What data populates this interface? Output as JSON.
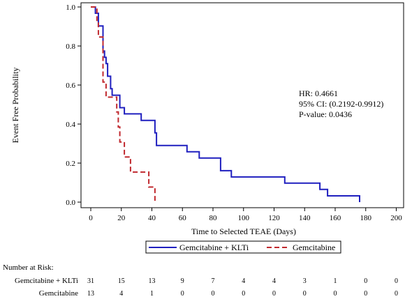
{
  "chart_data": {
    "type": "line",
    "subtype": "kaplan-meier step",
    "xlabel": "Time to Selected TEAE (Days)",
    "ylabel": "Event Free Probability",
    "xlim": [
      0,
      200
    ],
    "ylim": [
      0,
      1.0
    ],
    "x_ticks": [
      "0",
      "20",
      "40",
      "60",
      "80",
      "100",
      "120",
      "140",
      "160",
      "180",
      "200"
    ],
    "y_ticks": [
      "0.0",
      "0.2",
      "0.4",
      "0.6",
      "0.8",
      "1.0"
    ],
    "grid": false,
    "legend_position": "bottom",
    "series": [
      {
        "name": "Gemcitabine + KLTi",
        "color": "#1f1fbf",
        "line_style": "solid",
        "points": [
          [
            0,
            1.0
          ],
          [
            3,
            1.0
          ],
          [
            3,
            0.968
          ],
          [
            5,
            0.968
          ],
          [
            5,
            0.903
          ],
          [
            8,
            0.903
          ],
          [
            8,
            0.774
          ],
          [
            9,
            0.774
          ],
          [
            9,
            0.742
          ],
          [
            10,
            0.742
          ],
          [
            10,
            0.71
          ],
          [
            11,
            0.71
          ],
          [
            11,
            0.645
          ],
          [
            13,
            0.645
          ],
          [
            13,
            0.581
          ],
          [
            14,
            0.581
          ],
          [
            14,
            0.548
          ],
          [
            19,
            0.548
          ],
          [
            19,
            0.484
          ],
          [
            22,
            0.484
          ],
          [
            22,
            0.452
          ],
          [
            33,
            0.452
          ],
          [
            33,
            0.419
          ],
          [
            42,
            0.419
          ],
          [
            42,
            0.355
          ],
          [
            43,
            0.355
          ],
          [
            43,
            0.29
          ],
          [
            63,
            0.29
          ],
          [
            63,
            0.258
          ],
          [
            71,
            0.258
          ],
          [
            71,
            0.226
          ],
          [
            85,
            0.226
          ],
          [
            85,
            0.161
          ],
          [
            92,
            0.161
          ],
          [
            92,
            0.129
          ],
          [
            127,
            0.129
          ],
          [
            127,
            0.097
          ],
          [
            150,
            0.097
          ],
          [
            150,
            0.065
          ],
          [
            155,
            0.065
          ],
          [
            155,
            0.032
          ],
          [
            176,
            0.032
          ],
          [
            176,
            0.0
          ]
        ]
      },
      {
        "name": "Gemcitabine",
        "color": "#c0282e",
        "line_style": "dashed",
        "points": [
          [
            0,
            1.0
          ],
          [
            4,
            1.0
          ],
          [
            4,
            0.923
          ],
          [
            5,
            0.923
          ],
          [
            5,
            0.846
          ],
          [
            8,
            0.846
          ],
          [
            8,
            0.615
          ],
          [
            10,
            0.615
          ],
          [
            10,
            0.538
          ],
          [
            17,
            0.538
          ],
          [
            17,
            0.462
          ],
          [
            18,
            0.462
          ],
          [
            18,
            0.385
          ],
          [
            19,
            0.385
          ],
          [
            19,
            0.308
          ],
          [
            22,
            0.308
          ],
          [
            22,
            0.231
          ],
          [
            26,
            0.231
          ],
          [
            26,
            0.154
          ],
          [
            38,
            0.154
          ],
          [
            38,
            0.077
          ],
          [
            42,
            0.077
          ],
          [
            42,
            0.0
          ]
        ]
      }
    ],
    "annotations": [
      "HR: 0.4661",
      "95% CI: (0.2192-0.9912)",
      "P-value: 0.0436"
    ]
  },
  "risk_table": {
    "title": "Number at Risk:",
    "rows": [
      {
        "label": "Gemcitabine + KLTi",
        "values": [
          "31",
          "15",
          "13",
          "9",
          "7",
          "4",
          "4",
          "3",
          "1",
          "0",
          "0"
        ]
      },
      {
        "label": "Gemcitabine",
        "values": [
          "13",
          "4",
          "1",
          "0",
          "0",
          "0",
          "0",
          "0",
          "0",
          "0",
          "0"
        ]
      }
    ]
  }
}
